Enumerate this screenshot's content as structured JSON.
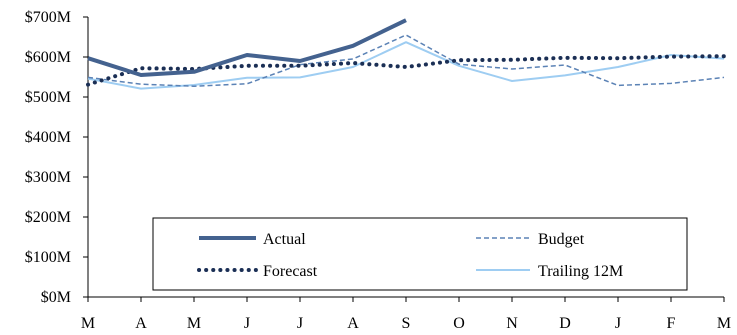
{
  "chart_data": {
    "type": "line",
    "categories": [
      "M",
      "A",
      "M",
      "J",
      "J",
      "A",
      "S",
      "O",
      "N",
      "D",
      "J",
      "F",
      "M"
    ],
    "y_ticks": [
      "$0M",
      "$100M",
      "$200M",
      "$300M",
      "$400M",
      "$500M",
      "$600M",
      "$700M"
    ],
    "ylim": [
      0,
      700
    ],
    "grid": false,
    "legend_position": "bottom-center, inside plot",
    "series": [
      {
        "name": "Actual",
        "style": "solid-thick",
        "color": "#44628f",
        "values": [
          597,
          555,
          563,
          605,
          590,
          628,
          692,
          null,
          null,
          null,
          null,
          null,
          null
        ]
      },
      {
        "name": "Budget",
        "style": "dashed",
        "color": "#5b82b5",
        "values": [
          549,
          532,
          527,
          533,
          581,
          595,
          655,
          582,
          570,
          580,
          529,
          534,
          549
        ]
      },
      {
        "name": "Forecast",
        "style": "dotted",
        "color": "#1b2f55",
        "values": [
          531,
          572,
          570,
          578,
          578,
          585,
          575,
          592,
          593,
          598,
          597,
          601,
          602
        ]
      },
      {
        "name": "Trailing 12M",
        "style": "solid-thin",
        "color": "#9ecdf2",
        "values": [
          546,
          521,
          530,
          548,
          549,
          575,
          637,
          578,
          540,
          554,
          575,
          605,
          596
        ]
      }
    ]
  }
}
